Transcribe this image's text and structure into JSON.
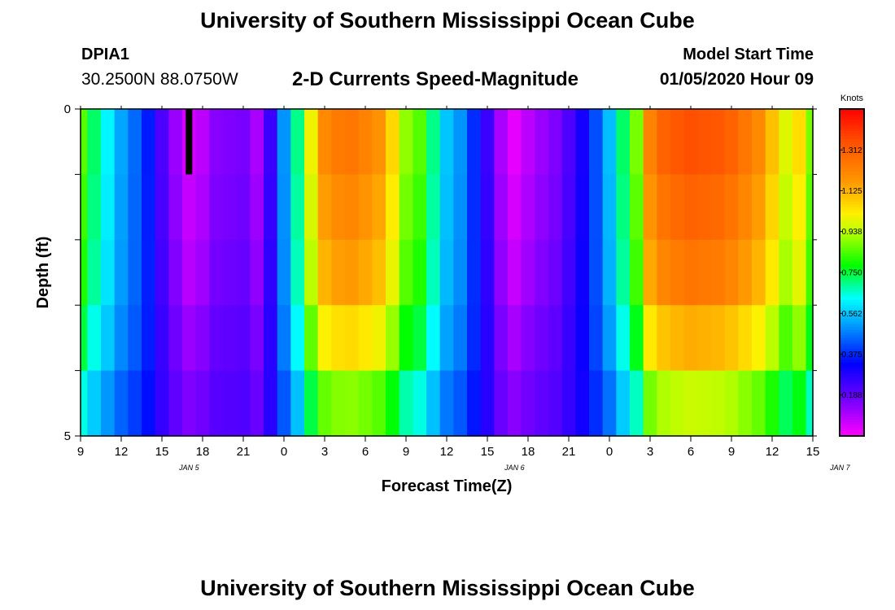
{
  "header": {
    "title": "University of Southern Mississippi Ocean Cube",
    "station": "DPIA1",
    "coords": "30.2500N 88.0750W",
    "model_start_label": "Model Start Time",
    "model_start_value": "01/05/2020 Hour 09"
  },
  "footer": {
    "title": "University of Southern Mississippi Ocean Cube"
  },
  "chart_data": {
    "type": "heatmap",
    "title": "2-D Currents Speed-Magnitude",
    "xlabel": "Forecast Time(Z)",
    "ylabel": "Depth (ft)",
    "x_start_hour": 9,
    "x_end_hour": 63,
    "x_tick_labels": [
      "9",
      "12",
      "15",
      "18",
      "21",
      "0",
      "3",
      "6",
      "9",
      "12",
      "15",
      "18",
      "21",
      "0",
      "3",
      "6",
      "9",
      "12",
      "15"
    ],
    "date_labels": [
      {
        "label": "JAN 5",
        "hour": 17
      },
      {
        "label": "JAN 6",
        "hour": 41
      },
      {
        "label": "JAN 7",
        "hour": 65
      }
    ],
    "y_range": [
      0,
      5
    ],
    "y_tick_labels": [
      "0",
      "5"
    ],
    "depth_layers": 5,
    "colorbar": {
      "unit": "Knots",
      "min": 0,
      "max": 1.5,
      "tick_labels": [
        "1.312",
        "1.125",
        "0.938",
        "0.750",
        "0.562",
        "0.375",
        "0.188"
      ],
      "tick_values": [
        1.312,
        1.125,
        0.938,
        0.75,
        0.562,
        0.375,
        0.188
      ]
    },
    "missing": [
      {
        "hour": 17,
        "layer": 0,
        "color": "#000000"
      }
    ],
    "surface_profile_hours": [
      9,
      10,
      11,
      12,
      13,
      14,
      15,
      16,
      17,
      18,
      19,
      20,
      21,
      22,
      23,
      24,
      25,
      26,
      27,
      28,
      29,
      30,
      31,
      32,
      33,
      34,
      35,
      36,
      37,
      38,
      39,
      40,
      41,
      42,
      43,
      44,
      45,
      46,
      47,
      48,
      49,
      50,
      51,
      52,
      53,
      54,
      55,
      56,
      57,
      58,
      59,
      60,
      61,
      62,
      63
    ],
    "surface_profile_speed": [
      0.85,
      0.72,
      0.62,
      0.52,
      0.45,
      0.36,
      0.22,
      0.12,
      0.05,
      0.08,
      0.14,
      0.15,
      0.16,
      0.1,
      0.25,
      0.5,
      0.7,
      1.0,
      1.2,
      1.24,
      1.25,
      1.22,
      1.18,
      1.06,
      0.9,
      0.85,
      0.7,
      0.56,
      0.5,
      0.38,
      0.25,
      0.1,
      0.03,
      0.08,
      0.12,
      0.15,
      0.22,
      0.3,
      0.42,
      0.55,
      0.72,
      0.88,
      1.22,
      1.3,
      1.33,
      1.35,
      1.34,
      1.33,
      1.3,
      1.25,
      1.2,
      1.1,
      0.98,
      1.05,
      0.88
    ],
    "layer_scale": [
      1.0,
      0.95,
      0.9,
      0.78,
      0.62
    ],
    "layer_offset": [
      0.0,
      0.02,
      0.04,
      0.08,
      0.12
    ]
  }
}
